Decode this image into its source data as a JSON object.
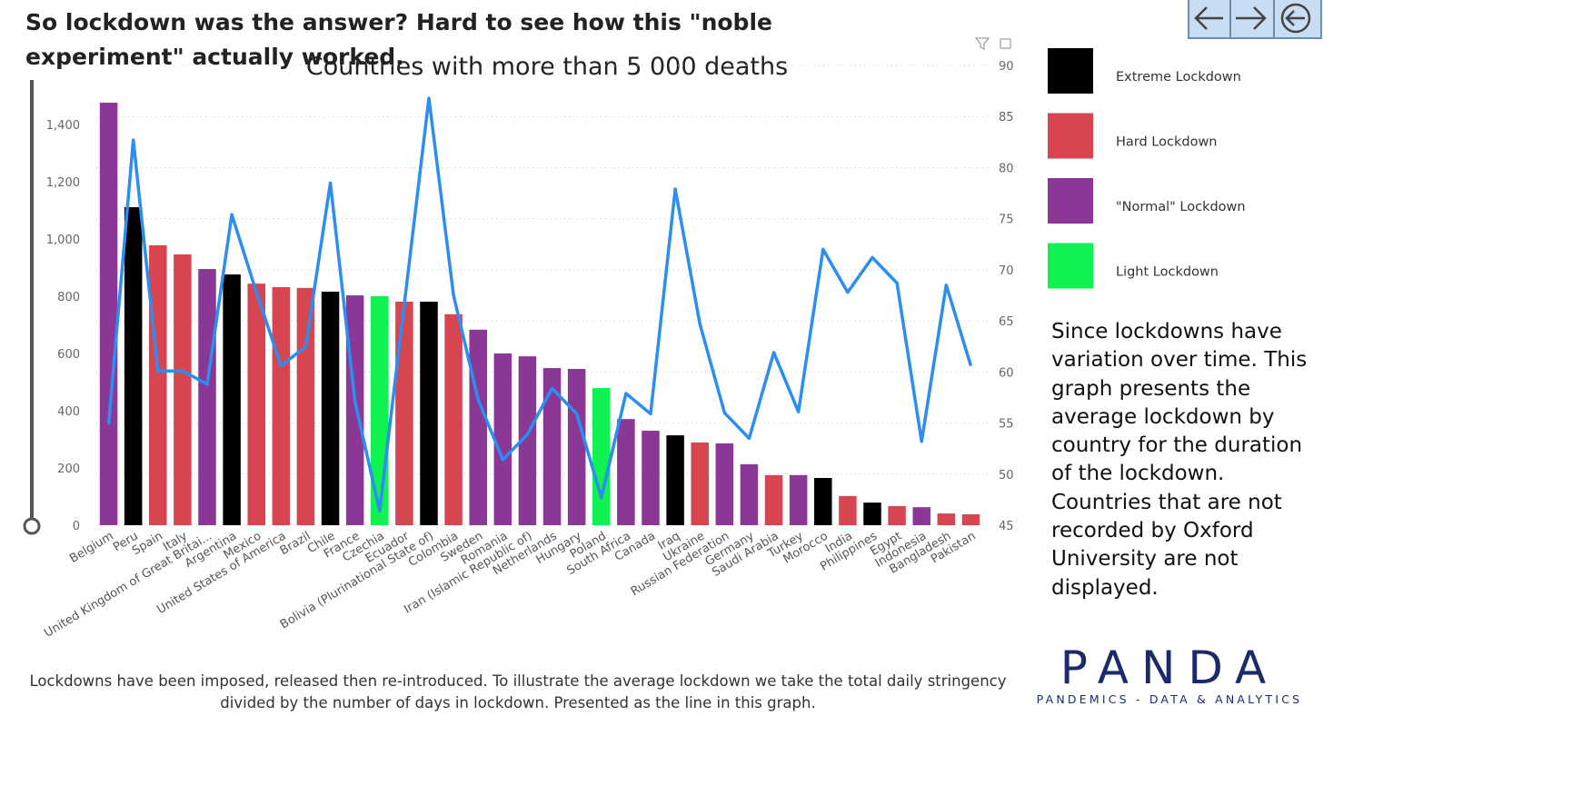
{
  "header": {
    "title": "So lockdown was the answer? Hard to see how this \"noble experiment\" actually worked."
  },
  "legend": [
    {
      "name": "Extreme Lockdown",
      "color": "#000000"
    },
    {
      "name": "Hard Lockdown",
      "color": "#d64550"
    },
    {
      "name": "\"Normal\" Lockdown",
      "color": "#8a3796"
    },
    {
      "name": "Light Lockdown",
      "color": "#0ff250"
    }
  ],
  "note": "Since lockdowns have variation over time. This graph presents the average lockdown by country for the duration of the lockdown. Countries that are not recorded by Oxford University are not displayed.",
  "footnote": "Lockdowns have been imposed, released then re-introduced. To illustrate the average lockdown we take the total daily stringency divided by the number of days in lockdown. Presented as the line in this graph.",
  "logo": {
    "name": "PANDA",
    "tagline": "PANDEMICS - DATA & ANALYTICS"
  },
  "chart_data": {
    "type": "bar",
    "title": "Countries with more than 5 000 deaths",
    "categories": [
      "Belgium",
      "Peru",
      "Spain",
      "Italy",
      "United Kingdom of Great Britai...",
      "Argentina",
      "Mexico",
      "United States of America",
      "Brazil",
      "Chile",
      "France",
      "Czechia",
      "Ecuador",
      "Bolivia (Plurinational State of)",
      "Colombia",
      "Sweden",
      "Romania",
      "Iran (Islamic Republic of)",
      "Netherlands",
      "Hungary",
      "Poland",
      "South Africa",
      "Canada",
      "Iraq",
      "Ukraine",
      "Russian Federation",
      "Germany",
      "Saudi Arabia",
      "Turkey",
      "Morocco",
      "India",
      "Philippines",
      "Egypt",
      "Indonesia",
      "Bangladesh",
      "Pakistan"
    ],
    "values": [
      1476,
      1111,
      978,
      946,
      895,
      876,
      844,
      832,
      829,
      816,
      803,
      800,
      781,
      781,
      737,
      683,
      600,
      590,
      549,
      546,
      479,
      371,
      330,
      314,
      289,
      286,
      213,
      175,
      175,
      165,
      102,
      79,
      67,
      63,
      41,
      38
    ],
    "colors": [
      "#8a3796",
      "#000000",
      "#d64550",
      "#d64550",
      "#8a3796",
      "#000000",
      "#d64550",
      "#d64550",
      "#d64550",
      "#000000",
      "#8a3796",
      "#0ff250",
      "#d64550",
      "#000000",
      "#d64550",
      "#8a3796",
      "#8a3796",
      "#8a3796",
      "#8a3796",
      "#8a3796",
      "#0ff250",
      "#8a3796",
      "#8a3796",
      "#000000",
      "#d64550",
      "#8a3796",
      "#8a3796",
      "#d64550",
      "#8a3796",
      "#000000",
      "#d64550",
      "#000000",
      "#d64550",
      "#8a3796",
      "#d64550",
      "#d64550"
    ],
    "line": {
      "axis": "y2",
      "color": "#2b8ef0",
      "values": [
        54.9,
        82.7,
        60.1,
        60.1,
        58.8,
        75.4,
        67.8,
        60.6,
        62.5,
        78.5,
        57.1,
        46.4,
        66.6,
        86.8,
        67.5,
        57.3,
        51.4,
        53.9,
        58.4,
        55.9,
        47.7,
        57.9,
        55.9,
        77.9,
        64.7,
        56.0,
        53.5,
        61.9,
        56.1,
        72.0,
        67.8,
        71.2,
        68.7,
        53.2,
        68.5,
        60.6
      ]
    },
    "ylim": [
      0,
      1400
    ],
    "yticks": [
      0,
      200,
      400,
      600,
      800,
      {
        "value": 1000,
        "label": "1,000"
      },
      {
        "value": 1200,
        "label": "1,200"
      },
      {
        "value": 1400,
        "label": "1,400"
      }
    ],
    "y2lim": [
      45,
      90
    ],
    "y2ticks": [
      45,
      50,
      55,
      60,
      65,
      70,
      75,
      80,
      85,
      90
    ],
    "grid": true
  }
}
